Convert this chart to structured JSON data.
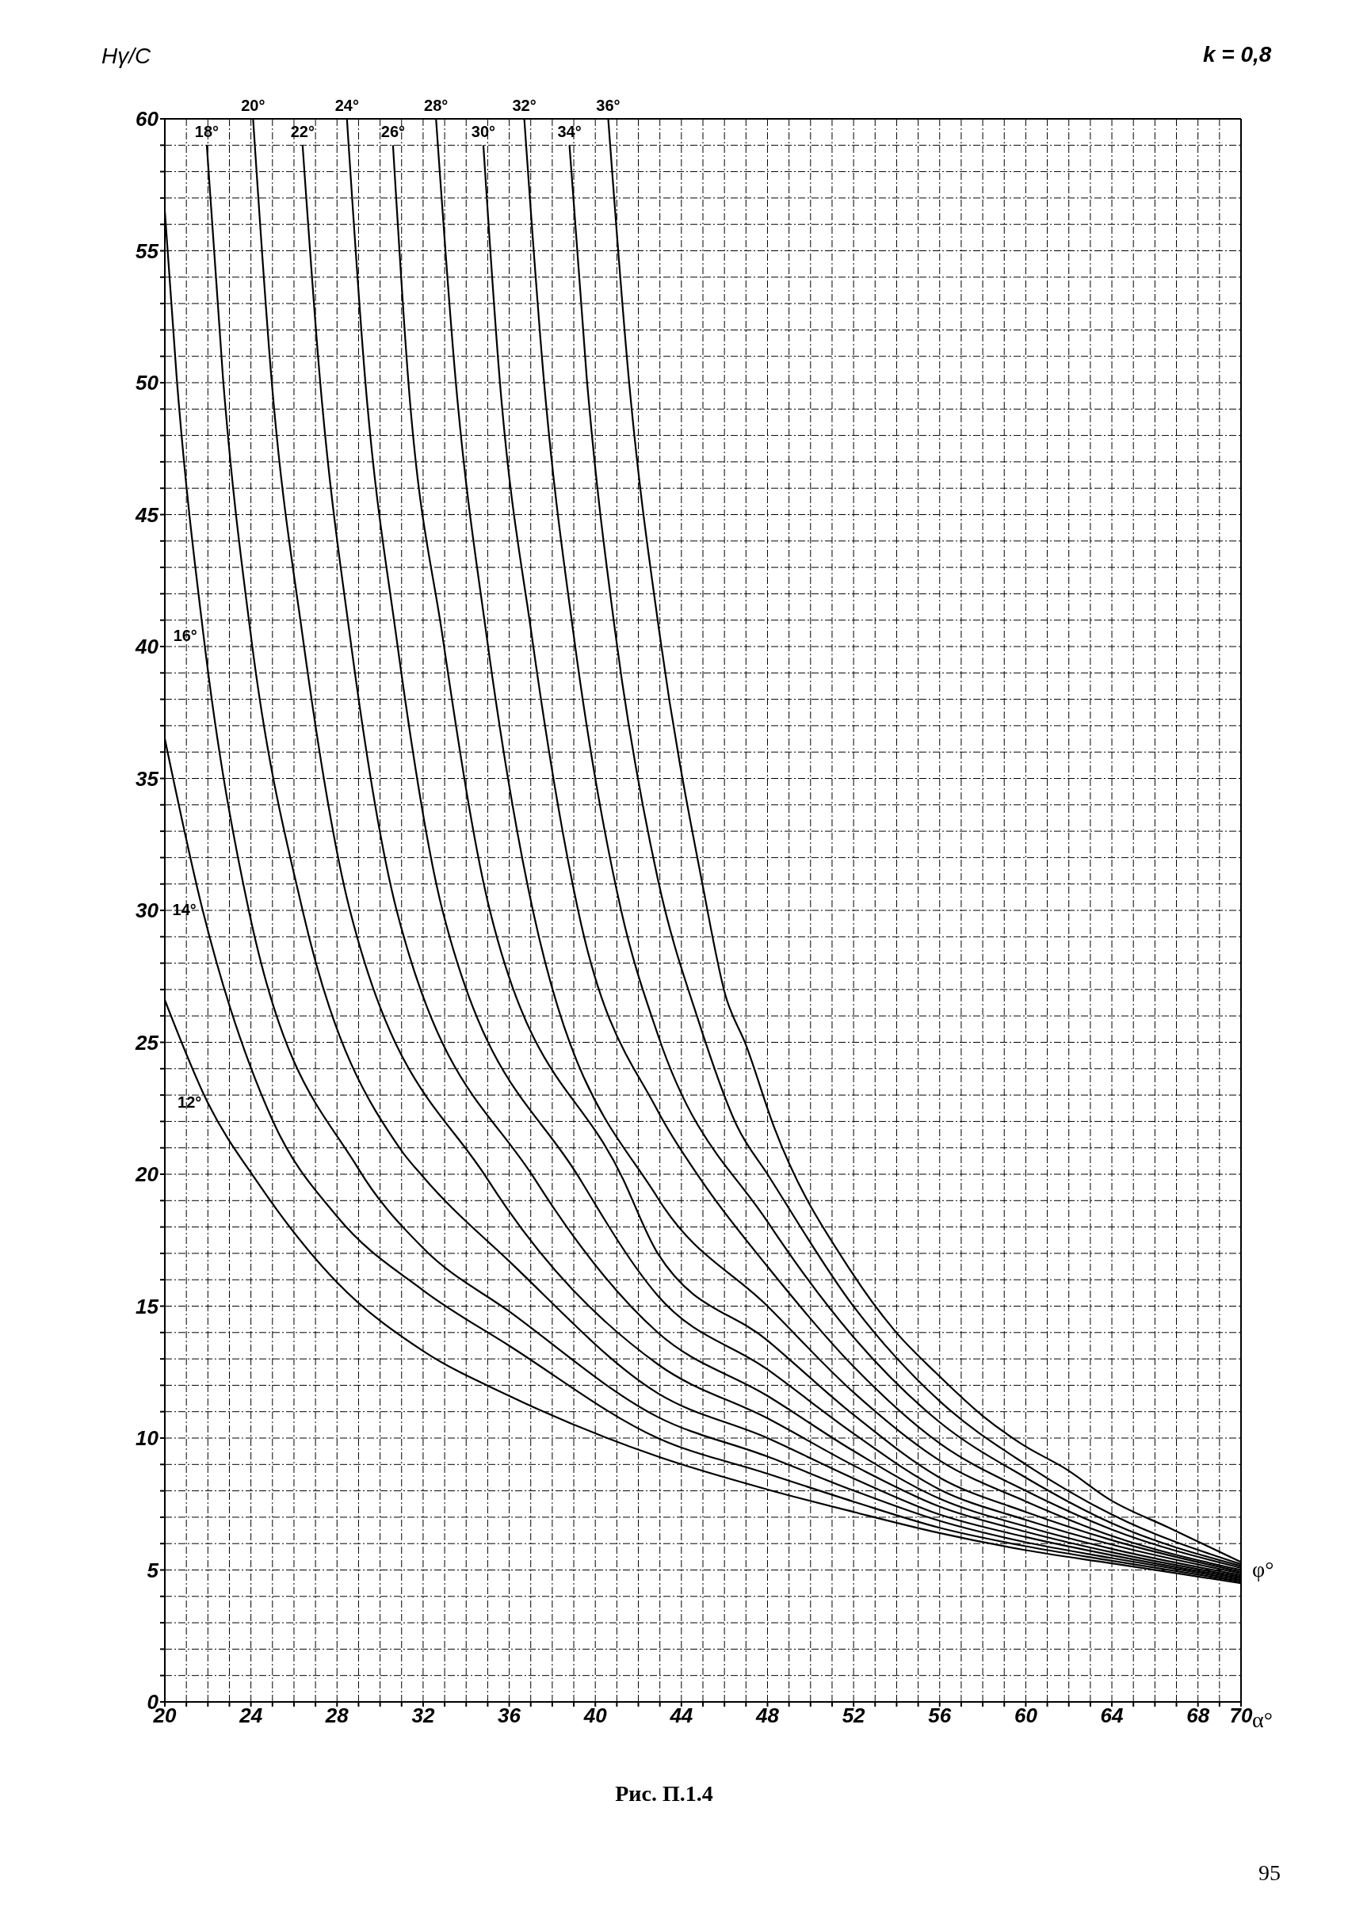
{
  "chart_data": {
    "type": "line",
    "ylabel": "Hγ/C",
    "xlabel": "α°",
    "legend_title": "φ°",
    "annotations": [
      "k = 0,8",
      "Рис. П.1.4",
      "95"
    ],
    "xlim": [
      20,
      70
    ],
    "ylim": [
      0,
      60
    ],
    "xticks": [
      20,
      {
        "value": 21,
        "label": null
      },
      {
        "value": 22,
        "label": null
      },
      {
        "value": 23,
        "label": null
      },
      24,
      {
        "value": 25,
        "label": null
      },
      {
        "value": 26,
        "label": null
      },
      {
        "value": 27,
        "label": null
      },
      28,
      {
        "value": 29,
        "label": null
      },
      {
        "value": 30,
        "label": null
      },
      {
        "value": 31,
        "label": null
      },
      32,
      {
        "value": 33,
        "label": null
      },
      {
        "value": 34,
        "label": null
      },
      {
        "value": 35,
        "label": null
      },
      36,
      {
        "value": 37,
        "label": null
      },
      {
        "value": 38,
        "label": null
      },
      {
        "value": 39,
        "label": null
      },
      40,
      {
        "value": 41,
        "label": null
      },
      {
        "value": 42,
        "label": null
      },
      {
        "value": 43,
        "label": null
      },
      44,
      {
        "value": 45,
        "label": null
      },
      {
        "value": 46,
        "label": null
      },
      {
        "value": 47,
        "label": null
      },
      48,
      {
        "value": 49,
        "label": null
      },
      {
        "value": 50,
        "label": null
      },
      {
        "value": 51,
        "label": null
      },
      52,
      {
        "value": 53,
        "label": null
      },
      {
        "value": 54,
        "label": null
      },
      {
        "value": 55,
        "label": null
      },
      56,
      {
        "value": 57,
        "label": null
      },
      {
        "value": 58,
        "label": null
      },
      {
        "value": 59,
        "label": null
      },
      60,
      {
        "value": 61,
        "label": null
      },
      {
        "value": 62,
        "label": null
      },
      {
        "value": 63,
        "label": null
      },
      64,
      {
        "value": 65,
        "label": null
      },
      {
        "value": 66,
        "label": null
      },
      {
        "value": 67,
        "label": null
      },
      68,
      {
        "value": 69,
        "label": null
      },
      70
    ],
    "yticks": [
      0,
      {
        "value": 1,
        "label": null
      },
      {
        "value": 2,
        "label": null
      },
      {
        "value": 3,
        "label": null
      },
      {
        "value": 4,
        "label": null
      },
      5,
      {
        "value": 6,
        "label": null
      },
      {
        "value": 7,
        "label": null
      },
      {
        "value": 8,
        "label": null
      },
      {
        "value": 9,
        "label": null
      },
      10,
      {
        "value": 11,
        "label": null
      },
      {
        "value": 12,
        "label": null
      },
      {
        "value": 13,
        "label": null
      },
      {
        "value": 14,
        "label": null
      },
      15,
      {
        "value": 16,
        "label": null
      },
      {
        "value": 17,
        "label": null
      },
      {
        "value": 18,
        "label": null
      },
      {
        "value": 19,
        "label": null
      },
      20,
      {
        "value": 21,
        "label": null
      },
      {
        "value": 22,
        "label": null
      },
      {
        "value": 23,
        "label": null
      },
      {
        "value": 24,
        "label": null
      },
      25,
      {
        "value": 26,
        "label": null
      },
      {
        "value": 27,
        "label": null
      },
      {
        "value": 28,
        "label": null
      },
      {
        "value": 29,
        "label": null
      },
      30,
      {
        "value": 31,
        "label": null
      },
      {
        "value": 32,
        "label": null
      },
      {
        "value": 33,
        "label": null
      },
      {
        "value": 34,
        "label": null
      },
      35,
      {
        "value": 36,
        "label": null
      },
      {
        "value": 37,
        "label": null
      },
      {
        "value": 38,
        "label": null
      },
      {
        "value": 39,
        "label": null
      },
      40,
      {
        "value": 41,
        "label": null
      },
      {
        "value": 42,
        "label": null
      },
      {
        "value": 43,
        "label": null
      },
      {
        "value": 44,
        "label": null
      },
      45,
      {
        "value": 46,
        "label": null
      },
      {
        "value": 47,
        "label": null
      },
      {
        "value": 48,
        "label": null
      },
      {
        "value": 49,
        "label": null
      },
      50,
      {
        "value": 51,
        "label": null
      },
      {
        "value": 52,
        "label": null
      },
      {
        "value": 53,
        "label": null
      },
      {
        "value": 54,
        "label": null
      },
      55,
      {
        "value": 56,
        "label": null
      },
      {
        "value": 57,
        "label": null
      },
      {
        "value": 58,
        "label": null
      },
      {
        "value": 59,
        "label": null
      },
      60
    ],
    "grid": true,
    "legend": false,
    "marker": "none",
    "line_style": "solid",
    "series": [
      {
        "name": "12°",
        "color": "#000000",
        "x": [
          20,
          22,
          24.3,
          28,
          32,
          36,
          42.9,
          48,
          52,
          56,
          60,
          64,
          70
        ],
        "values": [
          26.6,
          22.7,
          19.7,
          15.9,
          13.3,
          11.6,
          9.3,
          8.05,
          7.2,
          6.4,
          5.75,
          5.25,
          4.5
        ]
      },
      {
        "name": "14°",
        "color": "#000000",
        "x": [
          20,
          21.76,
          25,
          28,
          32,
          36,
          42.9,
          48,
          52,
          56,
          60,
          64,
          70
        ],
        "values": [
          36.5,
          30,
          22.05,
          18.4,
          15.6,
          13.5,
          10,
          8.65,
          7.59,
          6.6,
          5.9,
          5.35,
          4.56
        ]
      },
      {
        "name": "16°",
        "color": "#000000",
        "x": [
          20,
          20.55,
          21.8,
          23.9,
          29,
          32,
          36,
          42.9,
          48,
          52,
          56,
          60,
          64,
          70
        ],
        "values": [
          56.5,
          50.2,
          40.4,
          30,
          20.2,
          17.2,
          14.8,
          10.8,
          9.3,
          8.01,
          6.86,
          6.05,
          5.45,
          4.62
        ]
      },
      {
        "name": "18°",
        "color": "#000000",
        "x": [
          21.95,
          22.7,
          24,
          26.4,
          30.9,
          32,
          36,
          42.9,
          48,
          52,
          56,
          60,
          64,
          70
        ],
        "values": [
          59,
          50.2,
          40.4,
          30,
          21,
          19.9,
          16.7,
          11.7,
          10,
          8.47,
          7.1,
          6.25,
          5.56,
          4.68
        ]
      },
      {
        "name": "20°",
        "color": "#000000",
        "x": [
          24.1,
          24.95,
          26.4,
          28.6,
          35,
          42.9,
          48,
          52,
          56,
          60,
          64,
          70
        ],
        "values": [
          60,
          50.2,
          40.4,
          30,
          19.8,
          12.8,
          10.75,
          8.96,
          7.4,
          6.45,
          5.67,
          4.74
        ]
      },
      {
        "name": "22°",
        "color": "#000000",
        "x": [
          26.4,
          27.2,
          28.6,
          30.77,
          37.2,
          42.9,
          48,
          52,
          56,
          60,
          64,
          70
        ],
        "values": [
          59,
          50.2,
          40.4,
          30,
          19.8,
          14,
          11.6,
          9.51,
          7.7,
          6.65,
          5.8,
          4.8
        ]
      },
      {
        "name": "24°",
        "color": "#000000",
        "x": [
          28.46,
          29.3,
          30.75,
          32.9,
          39.3,
          42.9,
          48,
          52,
          56,
          60,
          64,
          70
        ],
        "values": [
          60,
          50.2,
          40.4,
          30,
          19.8,
          15.4,
          12.6,
          10.17,
          8.05,
          6.9,
          5.96,
          4.87
        ]
      },
      {
        "name": "26°",
        "color": "#000000",
        "x": [
          30.6,
          31.3,
          32.9,
          35.1,
          41.3,
          42.9,
          48,
          52,
          56,
          60,
          64,
          70
        ],
        "values": [
          59,
          50.2,
          40.4,
          30,
          19.8,
          17,
          13.7,
          10.88,
          8.5,
          7.2,
          6.13,
          4.93
        ]
      },
      {
        "name": "28°",
        "color": "#000000",
        "x": [
          32.6,
          33.5,
          34.95,
          37.1,
          42.9,
          48,
          52,
          56,
          60,
          64,
          70
        ],
        "values": [
          60,
          50.2,
          40.4,
          30,
          19.1,
          15,
          11.73,
          9.15,
          7.6,
          6.29,
          5
        ]
      },
      {
        "name": "30°",
        "color": "#000000",
        "x": [
          34.8,
          35.55,
          37.05,
          39.2,
          42.9,
          44.9,
          48,
          52,
          56,
          60,
          64,
          70
        ],
        "values": [
          59,
          50.2,
          40.4,
          30,
          22.4,
          19.8,
          16.5,
          12.71,
          9.8,
          8,
          6.53,
          5.08
        ]
      },
      {
        "name": "32°",
        "color": "#000000",
        "x": [
          36.7,
          37.6,
          39,
          41.2,
          42.9,
          48,
          52,
          56,
          60,
          64,
          70
        ],
        "values": [
          60,
          50.2,
          40.4,
          30,
          25.3,
          18.2,
          13.82,
          10.6,
          8.5,
          6.77,
          5.15
        ]
      },
      {
        "name": "34°",
        "color": "#000000",
        "x": [
          38.8,
          39.6,
          40.95,
          42.9,
          44.8,
          46.6,
          48,
          52,
          56,
          60,
          64,
          70
        ],
        "values": [
          59,
          50.2,
          40.4,
          31.2,
          25.8,
          21.8,
          20,
          14.99,
          11.4,
          9,
          7.1,
          5.22
        ]
      },
      {
        "name": "36°",
        "color": "#000000",
        "x": [
          40.6,
          41.55,
          43,
          45,
          46.04,
          47,
          48.3,
          51.85,
          53.9,
          55.84,
          58,
          59.8,
          61.9,
          63.9,
          66.6,
          70
        ],
        "values": [
          60,
          50.2,
          40.4,
          30.9,
          26.8,
          24.9,
          21.8,
          16.36,
          14.08,
          12.46,
          10.84,
          9.78,
          8.81,
          7.67,
          6.62,
          5.3
        ]
      }
    ]
  }
}
